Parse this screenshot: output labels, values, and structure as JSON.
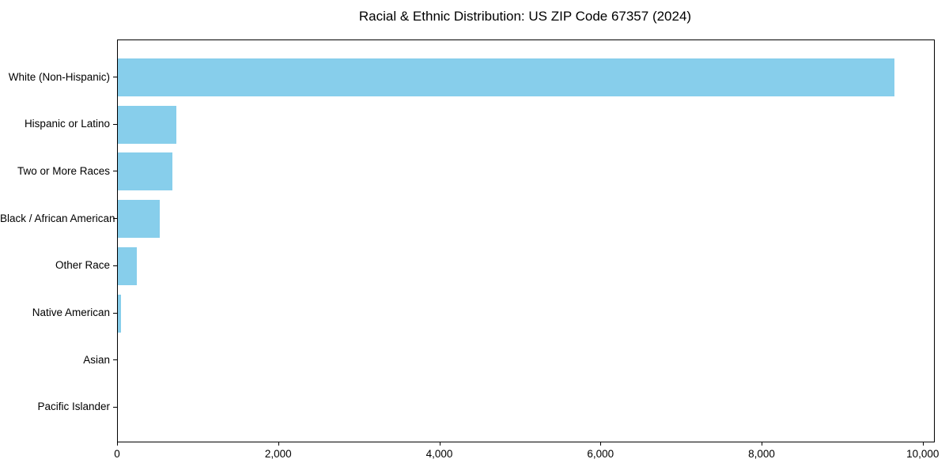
{
  "chart_data": {
    "type": "bar",
    "orientation": "horizontal",
    "title": "Racial & Ethnic Distribution: US ZIP Code 67357 (2024)",
    "categories": [
      "White (Non-Hispanic)",
      "Hispanic or Latino",
      "Two or More Races",
      "Black / African American",
      "Other Race",
      "Native American",
      "Asian",
      "Pacific Islander"
    ],
    "values": [
      9640,
      730,
      680,
      525,
      240,
      40,
      0,
      0
    ],
    "xlabel": "",
    "ylabel": "",
    "xlim": [
      0,
      10130
    ],
    "xticks": [
      0,
      2000,
      4000,
      6000,
      8000,
      10000
    ],
    "xtick_labels": [
      "0",
      "2,000",
      "4,000",
      "6,000",
      "8,000",
      "10,000"
    ],
    "bar_color": "#87CEEB",
    "spine_color": "#000000",
    "text_color": "#000000",
    "background_color": "#ffffff",
    "grid": false,
    "legend": null
  }
}
